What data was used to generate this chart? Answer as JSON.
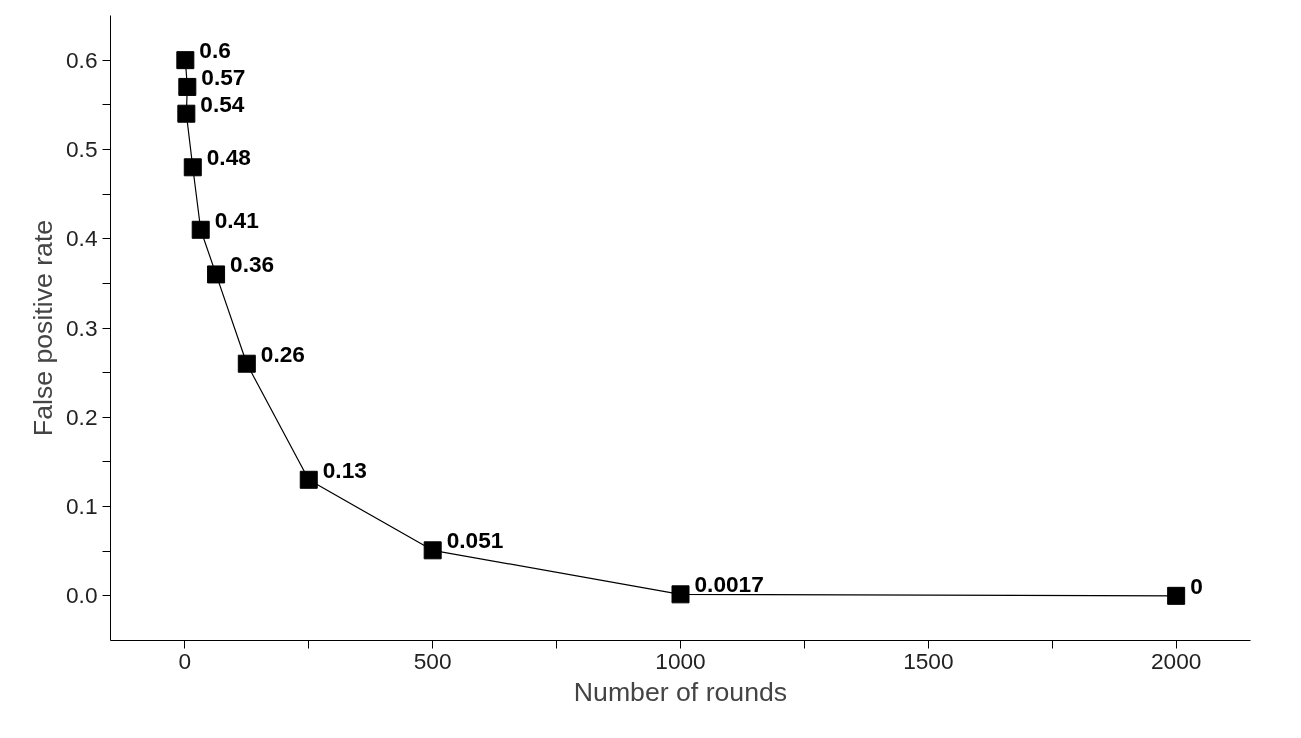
{
  "chart_data": {
    "type": "line",
    "xlabel": "Number of rounds",
    "ylabel": "False positive rate",
    "x": [
      1,
      5,
      3,
      16,
      32,
      63,
      125,
      250,
      500,
      1000,
      2000
    ],
    "series": [
      {
        "color": "#000000",
        "values": [
          0.6,
          0.57,
          0.54,
          0.48,
          0.41,
          0.36,
          0.26,
          0.13,
          0.051,
          0.0017,
          0
        ]
      }
    ],
    "data_labels": true,
    "marker": "square",
    "line_style": "solid",
    "grid": false,
    "xlim": [
      -150,
      2150
    ],
    "ylim": [
      -0.05,
      0.65
    ],
    "xticks": [
      0,
      {
        "value": 250,
        "label": null
      },
      500,
      {
        "value": 750,
        "label": null
      },
      1000,
      {
        "value": 1250,
        "label": null
      },
      1500,
      {
        "value": 1750,
        "label": null
      },
      2000
    ],
    "yticks": [
      {
        "value": 0,
        "label": "0.0"
      },
      {
        "value": 0.05,
        "label": null
      },
      {
        "value": 0.1,
        "label": "0.1"
      },
      {
        "value": 0.15,
        "label": null
      },
      {
        "value": 0.2,
        "label": "0.2"
      },
      {
        "value": 0.25,
        "label": null
      },
      {
        "value": 0.3,
        "label": "0.3"
      },
      {
        "value": 0.35,
        "label": null
      },
      {
        "value": 0.4,
        "label": "0.4"
      },
      {
        "value": 0.45,
        "label": null
      },
      {
        "value": 0.5,
        "label": "0.5"
      },
      {
        "value": 0.55,
        "label": null
      },
      {
        "value": 0.6,
        "label": "0.6"
      }
    ]
  }
}
